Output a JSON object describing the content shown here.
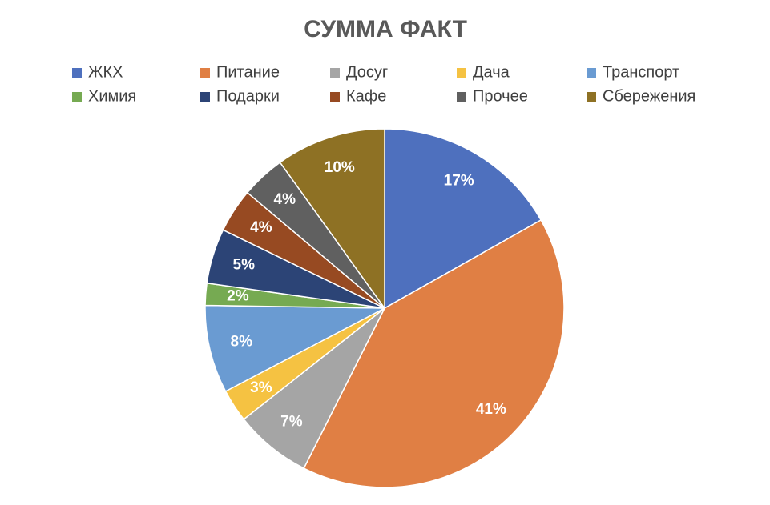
{
  "chart_data": {
    "type": "pie",
    "title": "СУММА ФАКТ",
    "categories": [
      "ЖКХ",
      "Питание",
      "Досуг",
      "Дача",
      "Транспорт",
      "Химия",
      "Подарки",
      "Кафе",
      "Прочее",
      "Сбережения"
    ],
    "values": [
      17,
      41,
      7,
      3,
      8,
      2,
      5,
      4,
      4,
      10
    ],
    "value_labels": [
      "17%",
      "41%",
      "7%",
      "3%",
      "8%",
      "2%",
      "5%",
      "4%",
      "4%",
      "10%"
    ],
    "colors": [
      "#4e70be",
      "#e07f44",
      "#a5a5a5",
      "#f5c242",
      "#6a9bd2",
      "#76aa52",
      "#2c4476",
      "#974a22",
      "#606060",
      "#8e7124"
    ],
    "legend": "top"
  }
}
